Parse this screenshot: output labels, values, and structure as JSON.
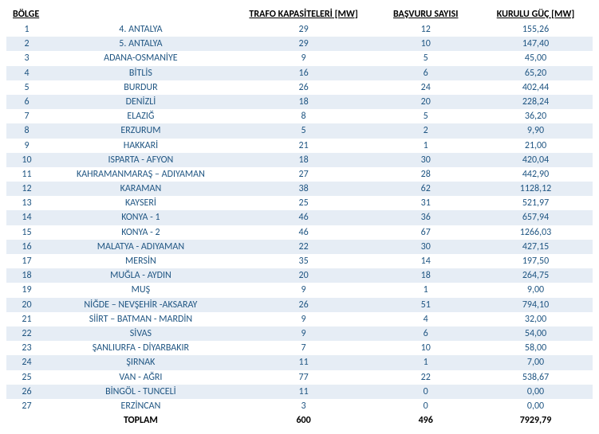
{
  "headers": {
    "bolge": "BÖLGE",
    "trafo": "TRAFO KAPASİTELERİ [MW]",
    "basvuru": "BAŞVURU SAYISI",
    "guc": "KURULU GÜÇ [MW]"
  },
  "rows": [
    {
      "idx": "1",
      "bolge": "4. ANTALYA",
      "trafo": "29",
      "bas": "12",
      "guc": "155,26"
    },
    {
      "idx": "2",
      "bolge": "5. ANTALYA",
      "trafo": "29",
      "bas": "10",
      "guc": "147,40"
    },
    {
      "idx": "3",
      "bolge": "ADANA-OSMANİYE",
      "trafo": "9",
      "bas": "5",
      "guc": "45,00"
    },
    {
      "idx": "4",
      "bolge": "BİTLİS",
      "trafo": "16",
      "bas": "6",
      "guc": "65,20"
    },
    {
      "idx": "5",
      "bolge": "BURDUR",
      "trafo": "26",
      "bas": "24",
      "guc": "402,44"
    },
    {
      "idx": "6",
      "bolge": "DENİZLİ",
      "trafo": "18",
      "bas": "20",
      "guc": "228,24"
    },
    {
      "idx": "7",
      "bolge": "ELAZIĞ",
      "trafo": "8",
      "bas": "5",
      "guc": "36,20"
    },
    {
      "idx": "8",
      "bolge": "ERZURUM",
      "trafo": "5",
      "bas": "2",
      "guc": "9,90"
    },
    {
      "idx": "9",
      "bolge": "HAKKARİ",
      "trafo": "21",
      "bas": "1",
      "guc": "21,00"
    },
    {
      "idx": "10",
      "bolge": "ISPARTA - AFYON",
      "trafo": "18",
      "bas": "30",
      "guc": "420,04"
    },
    {
      "idx": "11",
      "bolge": "KAHRAMANMARAŞ – ADIYAMAN",
      "trafo": "27",
      "bas": "28",
      "guc": "442,90"
    },
    {
      "idx": "12",
      "bolge": "KARAMAN",
      "trafo": "38",
      "bas": "62",
      "guc": "1128,12"
    },
    {
      "idx": "13",
      "bolge": "KAYSERİ",
      "trafo": "25",
      "bas": "31",
      "guc": "521,97"
    },
    {
      "idx": "14",
      "bolge": "KONYA - 1",
      "trafo": "46",
      "bas": "36",
      "guc": "657,94"
    },
    {
      "idx": "15",
      "bolge": "KONYA - 2",
      "trafo": "46",
      "bas": "67",
      "guc": "1266,03"
    },
    {
      "idx": "16",
      "bolge": "MALATYA - ADIYAMAN",
      "trafo": "22",
      "bas": "30",
      "guc": "427,15"
    },
    {
      "idx": "17",
      "bolge": "MERSİN",
      "trafo": "35",
      "bas": "14",
      "guc": "197,50"
    },
    {
      "idx": "18",
      "bolge": "MUĞLA - AYDIN",
      "trafo": "20",
      "bas": "18",
      "guc": "264,75"
    },
    {
      "idx": "19",
      "bolge": "MUŞ",
      "trafo": "9",
      "bas": "1",
      "guc": "9,00"
    },
    {
      "idx": "20",
      "bolge": "NİĞDE – NEVŞEHİR -AKSARAY",
      "trafo": "26",
      "bas": "51",
      "guc": "794,10"
    },
    {
      "idx": "21",
      "bolge": "SİİRT – BATMAN - MARDİN",
      "trafo": "9",
      "bas": "4",
      "guc": "32,00"
    },
    {
      "idx": "22",
      "bolge": "SİVAS",
      "trafo": "9",
      "bas": "6",
      "guc": "54,00"
    },
    {
      "idx": "23",
      "bolge": "ŞANLIURFA - DİYARBAKIR",
      "trafo": "7",
      "bas": "10",
      "guc": "58,00"
    },
    {
      "idx": "24",
      "bolge": "ŞIRNAK",
      "trafo": "11",
      "bas": "1",
      "guc": "7,00"
    },
    {
      "idx": "25",
      "bolge": "VAN - AĞRI",
      "trafo": "77",
      "bas": "22",
      "guc": "538,67"
    },
    {
      "idx": "26",
      "bolge": "BİNGÖL - TUNCELİ",
      "trafo": "11",
      "bas": "0",
      "guc": "0,00"
    },
    {
      "idx": "27",
      "bolge": "ERZİNCAN",
      "trafo": "3",
      "bas": "0",
      "guc": "0,00"
    }
  ],
  "total": {
    "label": "TOPLAM",
    "trafo": "600",
    "bas": "496",
    "guc": "7929,79"
  },
  "style": {
    "text_color": "#1f5582",
    "header_color": "#000000",
    "row_even_bg": "#e6edf5",
    "row_odd_bg": "#ffffff",
    "font_size": 12
  }
}
